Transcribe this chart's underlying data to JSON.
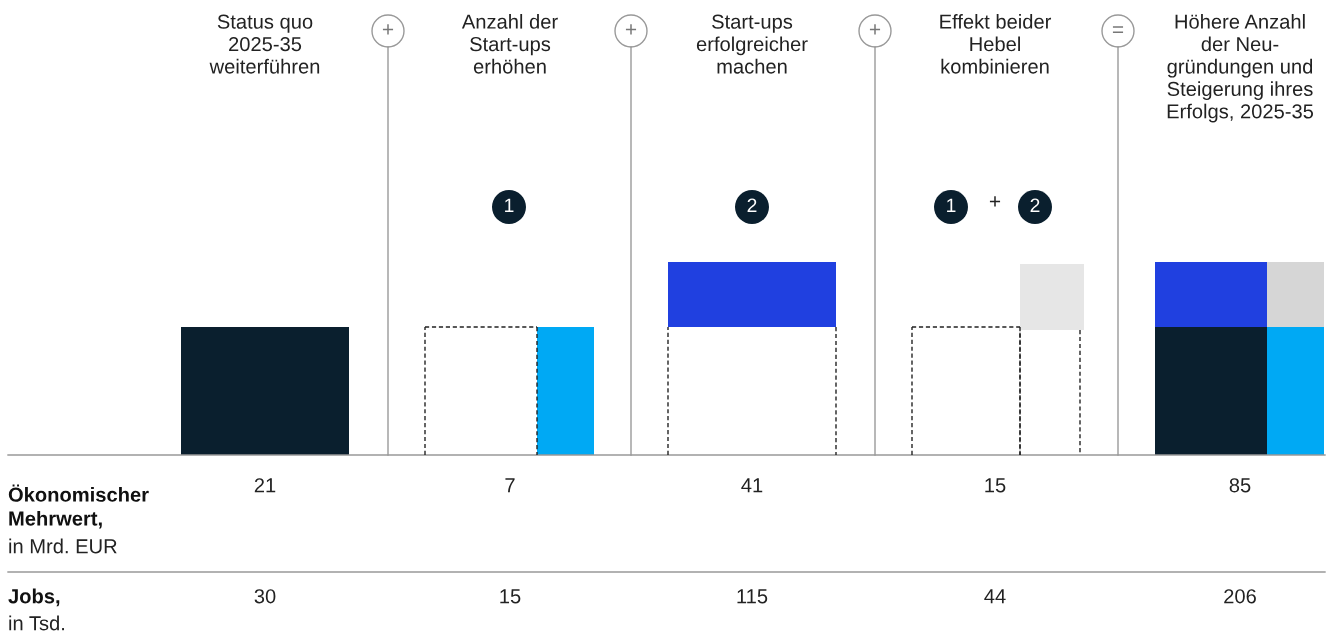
{
  "chart_data": {
    "type": "other",
    "categories": [
      "Status quo\n2025-35\nweiterführen",
      "Anzahl der\nStart-ups\nerhöhen",
      "Start-ups\nerfolgreicher\nmachen",
      "Effekt beider\nHebel\nkombinieren",
      "Höhere Anzahl\nder Neu-\ngründungen und\nSteigerung ihres\nErfolgs, 2025-35"
    ],
    "series": [
      {
        "name": "Ökonomischer\nMehrwert,",
        "values": [
          21,
          7,
          41,
          15,
          85
        ]
      },
      {
        "name": "Jobs,",
        "values": [
          30,
          15,
          115,
          44,
          206
        ]
      }
    ],
    "data_labels": true,
    "annotations": [
      "in Mrd. EUR",
      "in Tsd.",
      "1",
      "2",
      "1",
      "+",
      "2",
      "+",
      "+",
      "+",
      "="
    ]
  }
}
